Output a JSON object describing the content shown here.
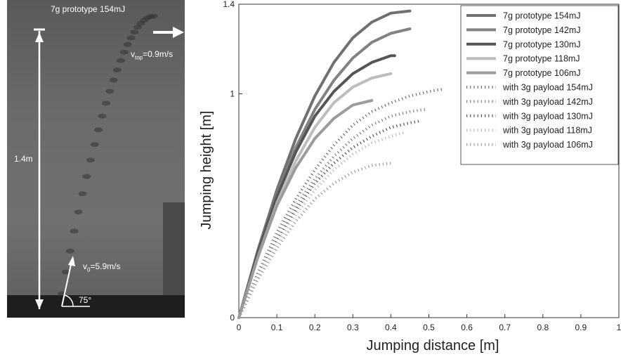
{
  "photo": {
    "title": "7g prototype 154mJ",
    "height_label": "1.4m",
    "vtop_prefix": "v",
    "vtop_sub": "top",
    "vtop_value": "=0.9m/s",
    "v0_prefix": "v",
    "v0_sub": "0",
    "v0_value": "=5.9m/s",
    "angle_label": "75°"
  },
  "chart_data": {
    "type": "line",
    "title": "",
    "xlabel": "Jumping distance [m]",
    "ylabel": "Jumping height [m]",
    "xlim": [
      0,
      1
    ],
    "ylim": [
      0,
      1.4
    ],
    "xticks": [
      "0",
      "0.1",
      "0.2",
      "0.3",
      "0.4",
      "0.5",
      "0.6",
      "0.7",
      "0.8",
      "0.9",
      "1"
    ],
    "yticks": [
      {
        "value": 0,
        "label": "0"
      },
      {
        "value": 1,
        "label": "1"
      },
      {
        "value": 1.4,
        "label": "1.4"
      }
    ],
    "grid": false,
    "legend_position": "top-right",
    "series": [
      {
        "name": "7g prototype 154mJ",
        "style": "solid",
        "color": "#707070",
        "x": [
          0,
          0.05,
          0.1,
          0.15,
          0.2,
          0.25,
          0.3,
          0.35,
          0.4,
          0.45
        ],
        "y": [
          0,
          0.3,
          0.57,
          0.8,
          0.99,
          1.14,
          1.25,
          1.32,
          1.36,
          1.37
        ]
      },
      {
        "name": "7g prototype 142mJ",
        "style": "solid",
        "color": "#828282",
        "x": [
          0,
          0.05,
          0.1,
          0.15,
          0.2,
          0.25,
          0.3,
          0.35,
          0.4,
          0.45
        ],
        "y": [
          0,
          0.29,
          0.55,
          0.76,
          0.93,
          1.06,
          1.16,
          1.23,
          1.27,
          1.29
        ]
      },
      {
        "name": "7g prototype 130mJ",
        "style": "solid",
        "color": "#555555",
        "x": [
          0,
          0.05,
          0.1,
          0.15,
          0.2,
          0.25,
          0.3,
          0.35,
          0.4,
          0.41
        ],
        "y": [
          0,
          0.29,
          0.54,
          0.74,
          0.9,
          1.01,
          1.09,
          1.14,
          1.17,
          1.17
        ]
      },
      {
        "name": "7g prototype 118mJ",
        "style": "solid",
        "color": "#bdbdbd",
        "x": [
          0,
          0.05,
          0.1,
          0.15,
          0.2,
          0.25,
          0.3,
          0.35,
          0.4
        ],
        "y": [
          0,
          0.27,
          0.51,
          0.7,
          0.85,
          0.96,
          1.03,
          1.07,
          1.09
        ]
      },
      {
        "name": "7g prototype 106mJ",
        "style": "solid",
        "color": "#9c9c9c",
        "x": [
          0,
          0.05,
          0.1,
          0.15,
          0.2,
          0.25,
          0.3,
          0.35
        ],
        "y": [
          0,
          0.27,
          0.5,
          0.67,
          0.8,
          0.89,
          0.95,
          0.97
        ]
      },
      {
        "name": "with 3g payload 154mJ",
        "style": "dotted",
        "color": "#707070",
        "x": [
          0,
          0.05,
          0.1,
          0.15,
          0.2,
          0.25,
          0.3,
          0.35,
          0.4,
          0.45,
          0.5,
          0.535
        ],
        "y": [
          0,
          0.2,
          0.38,
          0.53,
          0.66,
          0.77,
          0.86,
          0.92,
          0.96,
          0.99,
          1.01,
          1.02
        ]
      },
      {
        "name": "with 3g payload 142mJ",
        "style": "dotted",
        "color": "#828282",
        "x": [
          0,
          0.05,
          0.1,
          0.15,
          0.2,
          0.25,
          0.3,
          0.35,
          0.4,
          0.45,
          0.49
        ],
        "y": [
          0,
          0.19,
          0.36,
          0.5,
          0.62,
          0.72,
          0.8,
          0.86,
          0.9,
          0.92,
          0.93
        ]
      },
      {
        "name": "with 3g payload 130mJ",
        "style": "dotted",
        "color": "#555555",
        "x": [
          0,
          0.05,
          0.1,
          0.15,
          0.2,
          0.25,
          0.3,
          0.35,
          0.4,
          0.45,
          0.48
        ],
        "y": [
          0,
          0.18,
          0.34,
          0.48,
          0.6,
          0.69,
          0.76,
          0.81,
          0.85,
          0.87,
          0.88
        ]
      },
      {
        "name": "with 3g payload 118mJ",
        "style": "dotted",
        "color": "#bdbdbd",
        "x": [
          0,
          0.05,
          0.1,
          0.15,
          0.2,
          0.25,
          0.3,
          0.35,
          0.4,
          0.44
        ],
        "y": [
          0,
          0.18,
          0.33,
          0.46,
          0.57,
          0.66,
          0.73,
          0.78,
          0.81,
          0.83
        ]
      },
      {
        "name": "with 3g payload 106mJ",
        "style": "dotted",
        "color": "#9c9c9c",
        "x": [
          0,
          0.05,
          0.1,
          0.15,
          0.2,
          0.25,
          0.3,
          0.35,
          0.4
        ],
        "y": [
          0,
          0.17,
          0.31,
          0.43,
          0.53,
          0.6,
          0.65,
          0.68,
          0.69
        ]
      }
    ]
  }
}
